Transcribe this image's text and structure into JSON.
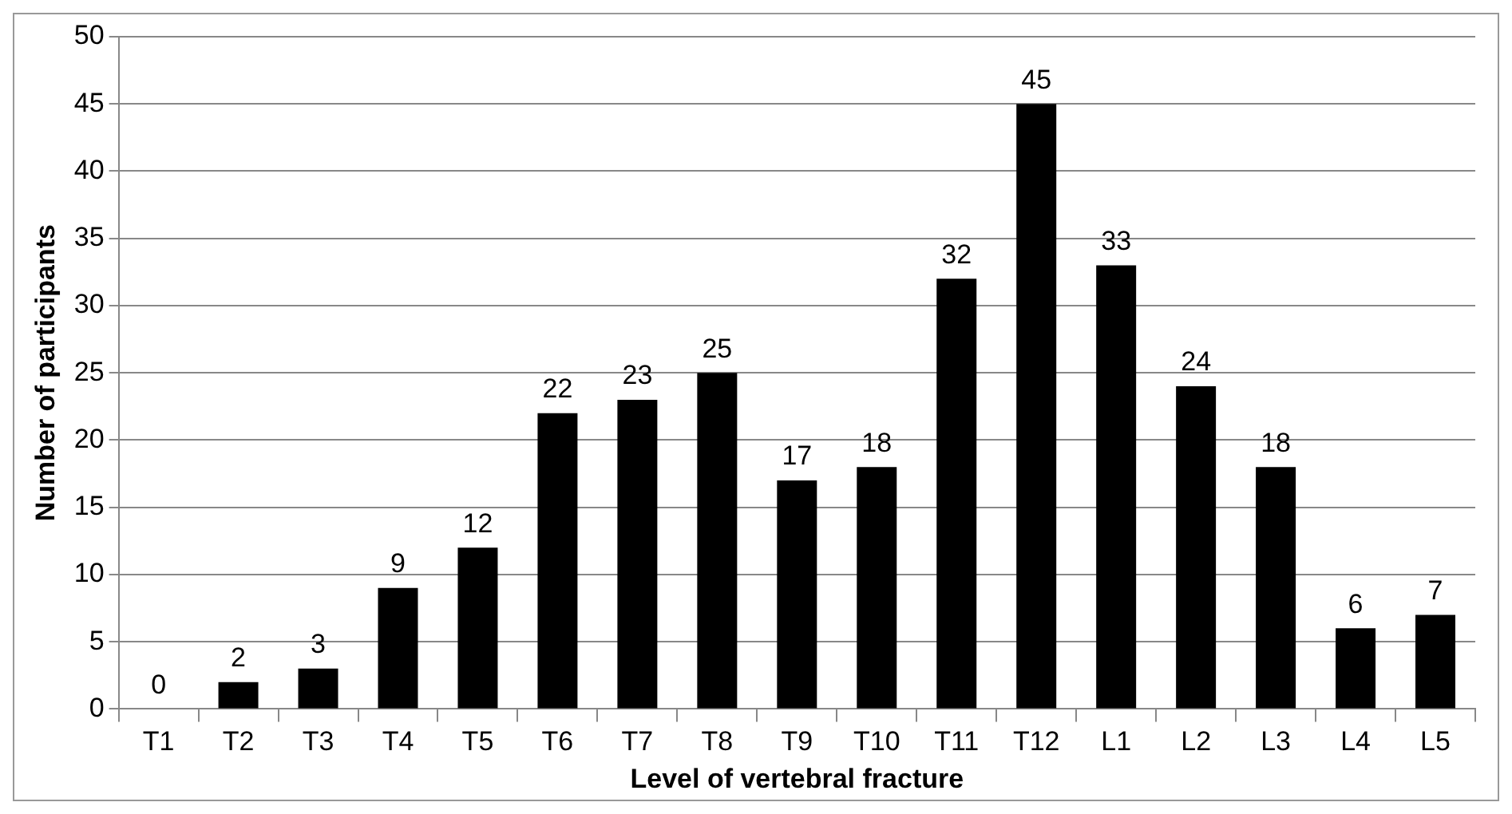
{
  "chart_data": {
    "type": "bar",
    "xlabel": "Level of vertebral fracture",
    "ylabel": "Number of participants",
    "categories": [
      "T1",
      "T2",
      "T3",
      "T4",
      "T5",
      "T6",
      "T7",
      "T8",
      "T9",
      "T10",
      "T11",
      "T12",
      "L1",
      "L2",
      "L3",
      "L4",
      "L5"
    ],
    "values": [
      0,
      2,
      3,
      9,
      12,
      22,
      23,
      25,
      17,
      18,
      32,
      45,
      33,
      24,
      18,
      6,
      7
    ],
    "color": "#000000",
    "ylim": [
      0,
      50
    ],
    "yticks": [
      0,
      5,
      10,
      15,
      20,
      25,
      30,
      35,
      40,
      45,
      50
    ],
    "grid": "y",
    "legend": false,
    "data_labels": true
  }
}
